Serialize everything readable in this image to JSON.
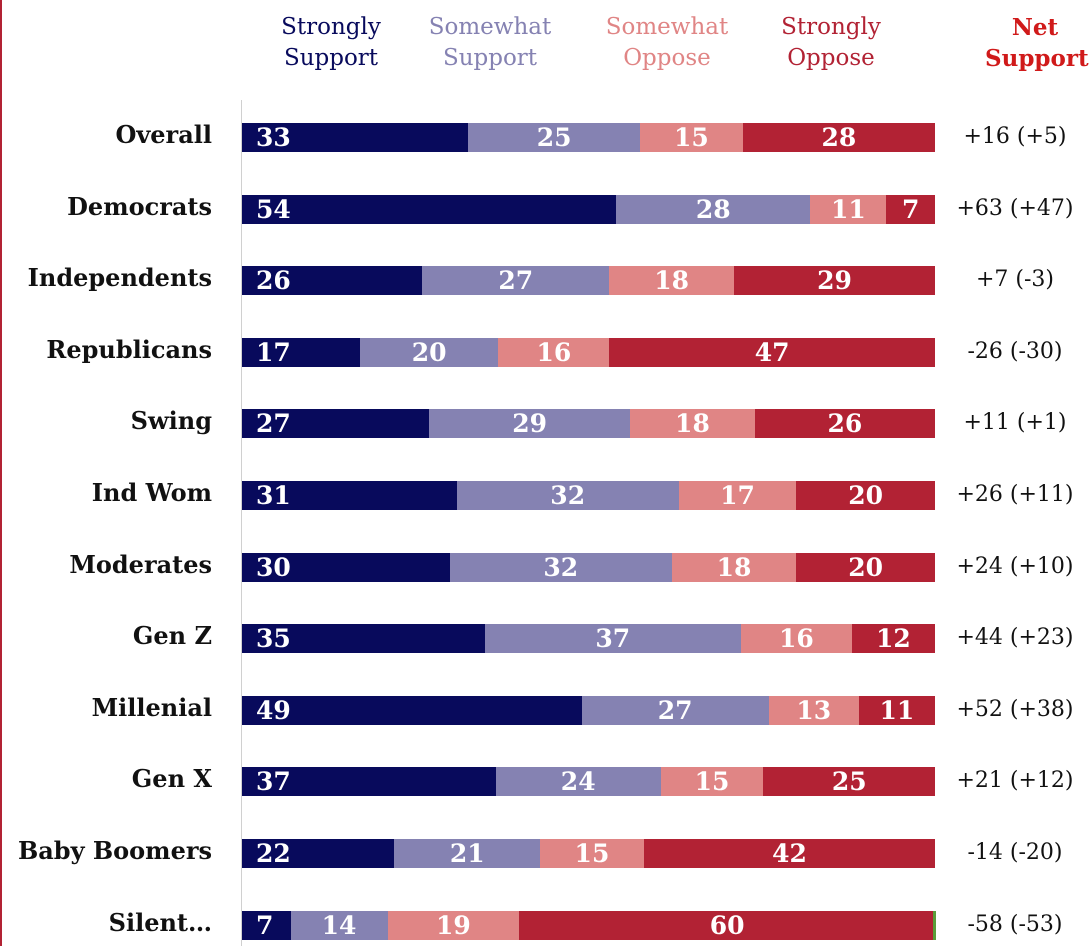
{
  "chart_data": {
    "type": "bar",
    "stacked": true,
    "orientation": "horizontal",
    "legend": {
      "position": "top",
      "entries": [
        {
          "label": "Strongly\nSupport",
          "color": "#080a5c"
        },
        {
          "label": "Somewhat\nSupport",
          "color": "#8582b2"
        },
        {
          "label": "Somewhat\nOppose",
          "color": "#e08585"
        },
        {
          "label": "Strongly\nOppose",
          "color": "#b22234"
        }
      ],
      "net_header": "Net\nSupport",
      "net_header_color": "#d01a1a"
    },
    "categories": [
      "Overall",
      "Democrats",
      "Independents",
      "Republicans",
      "Swing",
      "Ind Wom",
      "Moderates",
      "Gen Z",
      "Millenial",
      "Gen X",
      "Baby Boomers",
      "Silent…"
    ],
    "series": [
      {
        "name": "Strongly Support",
        "values": [
          33,
          54,
          26,
          17,
          27,
          31,
          30,
          35,
          49,
          37,
          22,
          7
        ]
      },
      {
        "name": "Somewhat Support",
        "values": [
          25,
          28,
          27,
          20,
          29,
          32,
          32,
          37,
          27,
          24,
          21,
          14
        ]
      },
      {
        "name": "Somewhat Oppose",
        "values": [
          15,
          11,
          18,
          16,
          18,
          17,
          18,
          16,
          13,
          15,
          15,
          19
        ]
      },
      {
        "name": "Strongly Oppose",
        "values": [
          28,
          7,
          29,
          47,
          26,
          20,
          20,
          12,
          11,
          25,
          42,
          60
        ]
      }
    ],
    "net_support": [
      "+16 (+5)",
      "+63 (+47)",
      "+7 (-3)",
      "-26 (-30)",
      "+11 (+1)",
      "+26 (+11)",
      "+24 (+10)",
      "+44 (+23)",
      "+52 (+38)",
      "+21 (+12)",
      "-14 (-20)",
      "-58 (-53)"
    ],
    "xlim": [
      0,
      100
    ],
    "title": "",
    "xlabel": "",
    "ylabel": ""
  }
}
